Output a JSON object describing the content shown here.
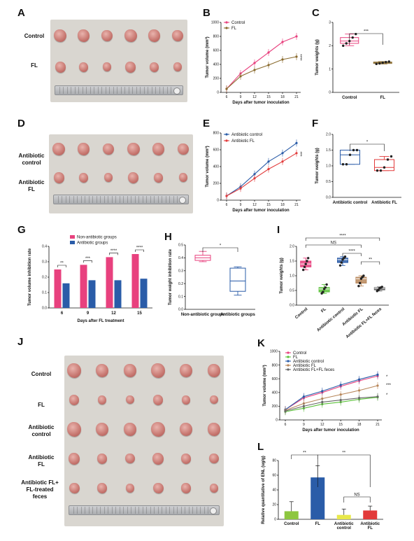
{
  "panel_labels": {
    "A": "A",
    "B": "B",
    "C": "C",
    "D": "D",
    "E": "E",
    "F": "F",
    "G": "G",
    "H": "H",
    "I": "I",
    "J": "J",
    "K": "K",
    "L": "L"
  },
  "panelA": {
    "rows": [
      "Control",
      "FL"
    ]
  },
  "panelD": {
    "rows": [
      "Antibiotic\ncontrol",
      "Antibiotic\nFL"
    ]
  },
  "panelJ": {
    "rows": [
      "Control",
      "FL",
      "Antibiotic\ncontrol",
      "Antibiotic\nFL",
      "Antibiotic FL+\nFL-treated\nfeces"
    ]
  },
  "chart_data": [
    {
      "id": "B",
      "type": "line",
      "xlabel": "Days after tumor inoculation",
      "ylabel": "Tumor volume (mm³)",
      "x": [
        6,
        9,
        12,
        15,
        18,
        21
      ],
      "ylim": [
        0,
        1000
      ],
      "yticks": [
        0,
        200,
        400,
        600,
        800,
        1000
      ],
      "series": [
        {
          "name": "Control",
          "color": "#e8417e",
          "values": [
            50,
            270,
            420,
            570,
            720,
            800
          ]
        },
        {
          "name": "FL",
          "color": "#8a6b2e",
          "values": [
            50,
            230,
            320,
            390,
            470,
            510
          ]
        }
      ],
      "annotation": "****"
    },
    {
      "id": "C",
      "type": "box",
      "ylabel": "Tumor weights (g)",
      "ylim": [
        0,
        3
      ],
      "yticks": [
        0,
        1,
        2,
        3
      ],
      "categories": [
        "Control",
        "FL"
      ],
      "colors": [
        "#e8417e",
        "#8a6b2e"
      ],
      "boxes": [
        {
          "min": 2.0,
          "q1": 2.1,
          "median": 2.2,
          "q3": 2.35,
          "max": 2.5
        },
        {
          "min": 1.22,
          "q1": 1.24,
          "median": 1.27,
          "q3": 1.3,
          "max": 1.32
        }
      ],
      "annotation": "***"
    },
    {
      "id": "E",
      "type": "line",
      "xlabel": "Days after tumor inoculation",
      "ylabel": "Tumor volume (mm³)",
      "x": [
        6,
        9,
        12,
        15,
        18,
        21
      ],
      "ylim": [
        0,
        800
      ],
      "yticks": [
        0,
        200,
        400,
        600,
        800
      ],
      "series": [
        {
          "name": "Antibiotic control",
          "color": "#2a5ca8",
          "values": [
            50,
            160,
            310,
            460,
            560,
            680
          ]
        },
        {
          "name": "Antibiotic FL",
          "color": "#e23a3a",
          "values": [
            50,
            140,
            260,
            370,
            460,
            560
          ]
        }
      ],
      "annotation": "***"
    },
    {
      "id": "F",
      "type": "box",
      "ylabel": "Tumor weights (g)",
      "ylim": [
        0.0,
        2.0
      ],
      "yticks": [
        0.0,
        0.5,
        1.0,
        1.5,
        2.0
      ],
      "categories": [
        "Antibiotic control",
        "Antibiotic FL"
      ],
      "colors": [
        "#2a5ca8",
        "#e23a3a"
      ],
      "boxes": [
        {
          "min": 1.05,
          "q1": 1.05,
          "median": 1.35,
          "q3": 1.5,
          "max": 1.5
        },
        {
          "min": 0.85,
          "q1": 0.85,
          "median": 0.95,
          "q3": 1.2,
          "max": 1.3
        }
      ],
      "annotation": "*"
    },
    {
      "id": "G",
      "type": "bar",
      "xlabel": "Days after FL treatment",
      "ylabel": "Tumor volume inhibition rate",
      "categories": [
        "6",
        "9",
        "12",
        "15"
      ],
      "ylim": [
        0.0,
        0.4
      ],
      "yticks": [
        0.0,
        0.1,
        0.2,
        0.3,
        0.4
      ],
      "series": [
        {
          "name": "Non-antibiotic groups",
          "color": "#e8417e",
          "values": [
            0.25,
            0.28,
            0.33,
            0.35
          ]
        },
        {
          "name": "Antibiotic groups",
          "color": "#2a5ca8",
          "values": [
            0.16,
            0.18,
            0.18,
            0.19
          ]
        }
      ],
      "annotations": [
        "**",
        "***",
        "****",
        "****"
      ]
    },
    {
      "id": "H",
      "type": "box",
      "ylabel": "Tumor weight inhibition rate",
      "ylim": [
        0.0,
        0.5
      ],
      "yticks": [
        0.0,
        0.1,
        0.2,
        0.3,
        0.4,
        0.5
      ],
      "categories": [
        "Non-antibiotic groups",
        "Antibiotic groups"
      ],
      "colors": [
        "#e8417e",
        "#2a5ca8"
      ],
      "boxes": [
        {
          "min": 0.37,
          "q1": 0.38,
          "median": 0.4,
          "q3": 0.42,
          "max": 0.45
        },
        {
          "min": 0.11,
          "q1": 0.14,
          "median": 0.22,
          "q3": 0.32,
          "max": 0.33
        }
      ],
      "annotation": "*"
    },
    {
      "id": "I",
      "type": "box",
      "ylabel": "Tumor weights (g)",
      "ylim": [
        0,
        2.0
      ],
      "yticks": [
        0,
        0.5,
        1.0,
        1.5,
        2.0
      ],
      "categories": [
        "Control",
        "FL",
        "Antibiotic control",
        "Antibiotic FL",
        "Antibiotic FL+FL feces"
      ],
      "colors": [
        "#e8417e",
        "#5cc23b",
        "#2a5ca8",
        "#b8875a",
        "#666666"
      ],
      "boxes": [
        {
          "min": 1.2,
          "q1": 1.3,
          "median": 1.4,
          "q3": 1.5,
          "max": 1.6
        },
        {
          "min": 0.4,
          "q1": 0.45,
          "median": 0.55,
          "q3": 0.6,
          "max": 0.7
        },
        {
          "min": 1.35,
          "q1": 1.45,
          "median": 1.55,
          "q3": 1.6,
          "max": 1.65
        },
        {
          "min": 0.65,
          "q1": 0.75,
          "median": 0.9,
          "q3": 0.95,
          "max": 1.0
        },
        {
          "min": 0.48,
          "q1": 0.52,
          "median": 0.58,
          "q3": 0.6,
          "max": 0.62
        }
      ],
      "annotations": [
        "****",
        "NS",
        "****",
        "**"
      ]
    },
    {
      "id": "K",
      "type": "line",
      "xlabel": "Days after tumor inoculation",
      "ylabel": "Tumor volume (mm³)",
      "x": [
        6,
        9,
        12,
        15,
        18,
        21
      ],
      "ylim": [
        0,
        1000
      ],
      "yticks": [
        0,
        200,
        400,
        600,
        800,
        1000
      ],
      "series": [
        {
          "name": "Control",
          "color": "#e8417e",
          "values": [
            150,
            320,
            400,
            490,
            570,
            640
          ]
        },
        {
          "name": "FL",
          "color": "#5cc23b",
          "values": [
            120,
            170,
            230,
            260,
            300,
            330
          ]
        },
        {
          "name": "Antibiotic control",
          "color": "#2a5ca8",
          "values": [
            150,
            340,
            420,
            510,
            590,
            660
          ]
        },
        {
          "name": "Antibiotic FL",
          "color": "#b8875a",
          "values": [
            140,
            240,
            310,
            370,
            430,
            500
          ]
        },
        {
          "name": "Antibiotic FL+FL feces",
          "color": "#666666",
          "values": [
            130,
            200,
            260,
            290,
            320,
            340
          ]
        }
      ],
      "annotations": [
        "*",
        "***",
        "*"
      ]
    },
    {
      "id": "L",
      "type": "bar",
      "ylabel": "Relative quantitative of ENL (ug/g)",
      "categories": [
        "Control",
        "FL",
        "Antibiotic control",
        "Antibiotic FL"
      ],
      "ylim": [
        0,
        80
      ],
      "yticks": [
        0,
        20,
        40,
        60,
        80
      ],
      "colors": [
        "#8dc63f",
        "#2a5ca8",
        "#e8e84a",
        "#e23a3a"
      ],
      "values": [
        11,
        57,
        6,
        12
      ],
      "errors": [
        13,
        16,
        8,
        6
      ],
      "annotations": [
        "**",
        "**",
        "NS"
      ]
    }
  ]
}
